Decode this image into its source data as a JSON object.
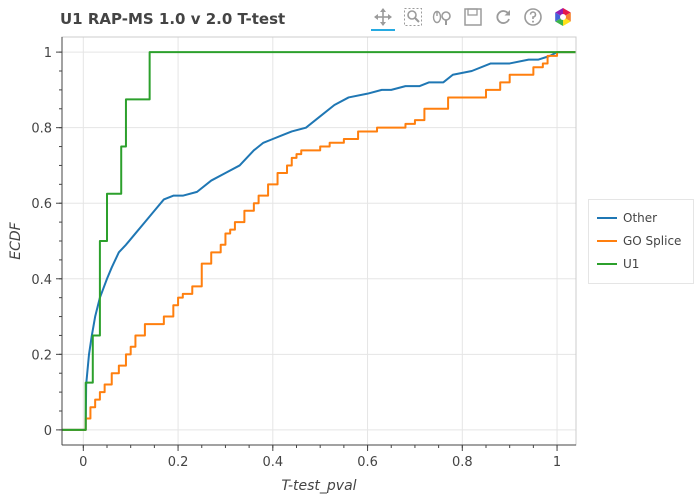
{
  "window": {
    "title": "U1 RAP-MS 1.0 v 2.0 T-test"
  },
  "toolbar": {
    "tools": [
      {
        "icon": "pan-icon",
        "active": true
      },
      {
        "icon": "box-zoom-icon",
        "active": false
      },
      {
        "icon": "wheel-zoom-icon",
        "active": false
      },
      {
        "icon": "save-icon",
        "active": false
      },
      {
        "icon": "reset-icon",
        "active": false
      },
      {
        "icon": "help-icon",
        "active": false
      },
      {
        "icon": "bokeh-logo",
        "active": false
      }
    ],
    "accent": "#26aae1"
  },
  "chart_data": {
    "type": "line",
    "title": "U1 RAP-MS 1.0 v 2.0 T-test",
    "xlabel": "T-test_pval",
    "ylabel": "ECDF",
    "xlim": [
      -0.045,
      1.04
    ],
    "ylim": [
      -0.04,
      1.04
    ],
    "x_ticks": [
      0,
      0.2,
      0.4,
      0.6,
      0.8,
      1
    ],
    "y_ticks": [
      0,
      0.2,
      0.4,
      0.6,
      0.8,
      1
    ],
    "grid": true,
    "legend_placement": "right",
    "series": [
      {
        "name": "Other",
        "color": "#1f77b4",
        "step": false,
        "x": [
          -0.045,
          0.005,
          0.006,
          0.012,
          0.018,
          0.025,
          0.035,
          0.05,
          0.06,
          0.075,
          0.09,
          0.11,
          0.13,
          0.15,
          0.17,
          0.19,
          0.21,
          0.24,
          0.27,
          0.3,
          0.33,
          0.36,
          0.38,
          0.4,
          0.42,
          0.44,
          0.47,
          0.5,
          0.53,
          0.56,
          0.6,
          0.63,
          0.65,
          0.68,
          0.71,
          0.73,
          0.76,
          0.78,
          0.82,
          0.86,
          0.9,
          0.94,
          0.96,
          0.985,
          1.0,
          1.04
        ],
        "y": [
          0,
          0,
          0.12,
          0.2,
          0.25,
          0.3,
          0.35,
          0.4,
          0.43,
          0.47,
          0.49,
          0.52,
          0.55,
          0.58,
          0.61,
          0.62,
          0.62,
          0.63,
          0.66,
          0.68,
          0.7,
          0.74,
          0.76,
          0.77,
          0.78,
          0.79,
          0.8,
          0.83,
          0.86,
          0.88,
          0.89,
          0.9,
          0.9,
          0.91,
          0.91,
          0.92,
          0.92,
          0.94,
          0.95,
          0.97,
          0.97,
          0.98,
          0.98,
          0.99,
          1.0,
          1.0
        ]
      },
      {
        "name": "GO Splice",
        "color": "#ff7f0e",
        "step": true,
        "x": [
          -0.045,
          0.005,
          0.015,
          0.025,
          0.035,
          0.045,
          0.06,
          0.075,
          0.09,
          0.1,
          0.11,
          0.13,
          0.16,
          0.17,
          0.19,
          0.2,
          0.21,
          0.23,
          0.25,
          0.27,
          0.29,
          0.3,
          0.31,
          0.32,
          0.34,
          0.36,
          0.37,
          0.39,
          0.41,
          0.43,
          0.44,
          0.45,
          0.46,
          0.48,
          0.5,
          0.52,
          0.55,
          0.58,
          0.6,
          0.62,
          0.65,
          0.68,
          0.7,
          0.72,
          0.75,
          0.77,
          0.82,
          0.85,
          0.88,
          0.9,
          0.95,
          0.97,
          0.98,
          1.0,
          1.04
        ],
        "y": [
          0,
          0.03,
          0.06,
          0.08,
          0.1,
          0.12,
          0.15,
          0.17,
          0.2,
          0.22,
          0.25,
          0.28,
          0.28,
          0.3,
          0.33,
          0.35,
          0.36,
          0.38,
          0.44,
          0.47,
          0.49,
          0.52,
          0.53,
          0.55,
          0.58,
          0.6,
          0.62,
          0.65,
          0.68,
          0.7,
          0.72,
          0.73,
          0.74,
          0.74,
          0.75,
          0.76,
          0.77,
          0.79,
          0.79,
          0.8,
          0.8,
          0.81,
          0.82,
          0.85,
          0.85,
          0.88,
          0.88,
          0.9,
          0.92,
          0.94,
          0.96,
          0.97,
          0.99,
          1.0,
          1.0
        ]
      },
      {
        "name": "U1",
        "color": "#2ca02c",
        "step": true,
        "x": [
          -0.045,
          0.005,
          0.02,
          0.035,
          0.05,
          0.08,
          0.09,
          0.14,
          1.04
        ],
        "y": [
          0,
          0.125,
          0.25,
          0.5,
          0.625,
          0.75,
          0.875,
          1.0,
          1.0
        ]
      }
    ]
  }
}
